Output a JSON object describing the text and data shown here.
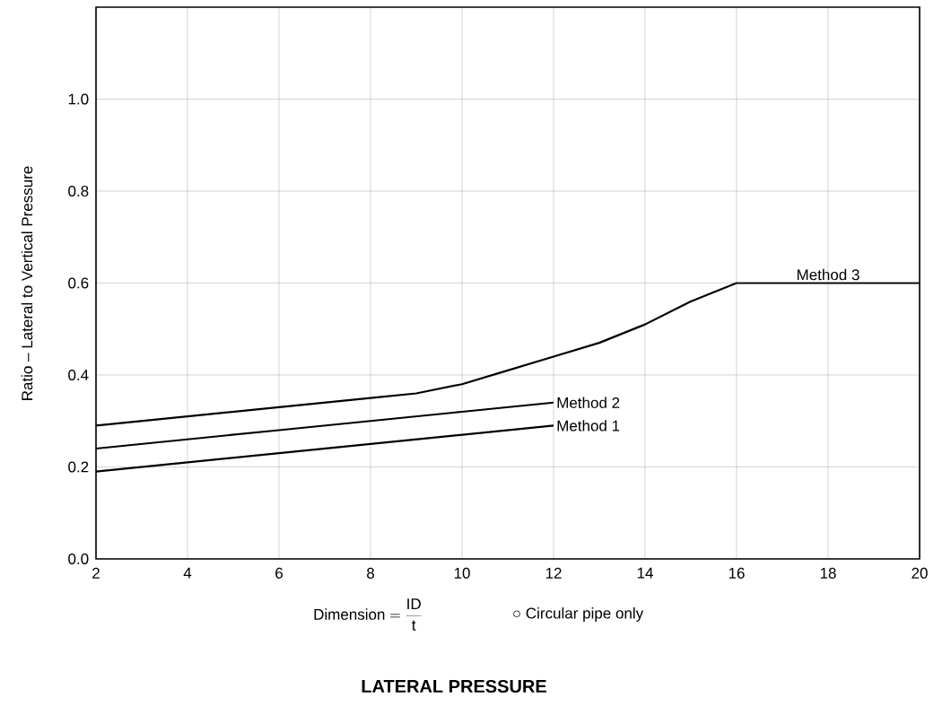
{
  "chart_data": {
    "type": "line",
    "title": "LATERAL PRESSURE",
    "xlabel": "\\mathrm{Dimension} = \\frac{\\mathrm{ID}}{\\mathrm{t}}",
    "ylabel": "Ratio – Lateral to Vertical Pressure",
    "annotations": [
      "○ Circular pipe only"
    ],
    "series": [
      {
        "name": "Method 1",
        "color": "#000000",
        "x": [
          2,
          4,
          6,
          8,
          10,
          12
        ],
        "values": [
          0.19,
          0.21,
          0.23,
          0.25,
          0.27,
          0.29
        ]
      },
      {
        "name": "Method 2",
        "color": "#000000",
        "x": [
          2,
          4,
          6,
          8,
          10,
          12
        ],
        "values": [
          0.24,
          0.26,
          0.28,
          0.3,
          0.32,
          0.34
        ]
      },
      {
        "name": "Method 3",
        "color": "#000000",
        "x": [
          2,
          4,
          6,
          8,
          9,
          10,
          11,
          12,
          13,
          14,
          15,
          16,
          20
        ],
        "values": [
          0.29,
          0.31,
          0.33,
          0.35,
          0.36,
          0.38,
          0.41,
          0.44,
          0.47,
          0.51,
          0.56,
          0.6,
          0.6
        ]
      }
    ],
    "xlim": [
      2,
      20
    ],
    "ylim": [
      0,
      1.2
    ],
    "xticks": [
      2,
      4,
      6,
      8,
      10,
      12,
      14,
      16,
      18,
      20
    ],
    "yticks": [
      {
        "value": 0,
        "label": "0.0"
      },
      {
        "value": 0.2,
        "label": "0.2"
      },
      {
        "value": 0.4,
        "label": "0.4"
      },
      {
        "value": 0.6,
        "label": "0.6"
      },
      {
        "value": 0.8,
        "label": "0.8"
      },
      {
        "value": 1.0,
        "label": "1.0"
      }
    ],
    "grid": true
  }
}
